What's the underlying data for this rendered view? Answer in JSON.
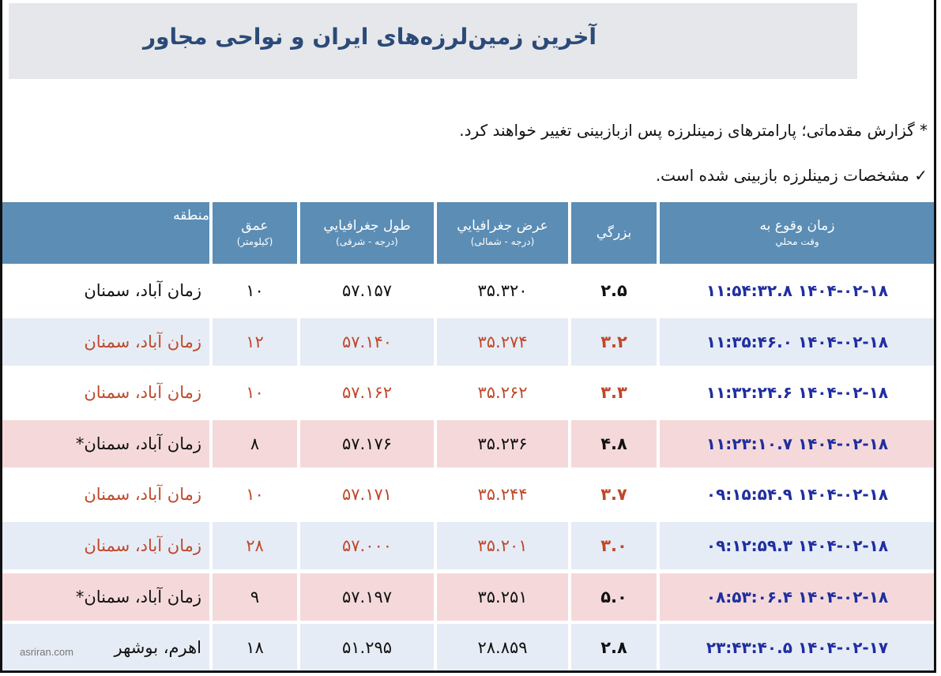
{
  "title": "آخرین زمین‌لرزه‌های ایران و نواحی مجاور",
  "notes": {
    "preliminary": "* گزارش مقدماتی؛ پارامترهای زمینلرزه پس ازبازبینی تغییر خواهند کرد.",
    "reviewed": "✓ مشخصات زمینلرزه بازبینی شده است."
  },
  "headers": {
    "time": {
      "main": "زمان وقوع به",
      "sub": "وقت محلي"
    },
    "magnitude": {
      "main": "بزرگي"
    },
    "latitude": {
      "main": "عرض جغرافيايي",
      "sub": "(درجه - شمالی)"
    },
    "longitude": {
      "main": "طول جغرافيايي",
      "sub": "(درجه - شرقی)"
    },
    "depth": {
      "main": "عمق",
      "sub": "(کیلومتر)"
    },
    "region": {
      "main": "منطقه"
    }
  },
  "rows": [
    {
      "time": "۱۴۰۴-۰۲-۱۸ ۱۱:۵۴:۳۲.۸",
      "magnitude": "۲.۵",
      "latitude": "۳۵.۳۲۰",
      "longitude": "۵۷.۱۵۷",
      "depth": "۱۰",
      "region": "زمان آباد، سمنان",
      "star": "",
      "tone": "dark",
      "bg": "white"
    },
    {
      "time": "۱۴۰۴-۰۲-۱۸ ۱۱:۳۵:۴۶.۰",
      "magnitude": "۳.۲",
      "latitude": "۳۵.۲۷۴",
      "longitude": "۵۷.۱۴۰",
      "depth": "۱۲",
      "region": "زمان آباد، سمنان",
      "star": "",
      "tone": "red",
      "bg": "blue"
    },
    {
      "time": "۱۴۰۴-۰۲-۱۸ ۱۱:۳۲:۲۴.۶",
      "magnitude": "۳.۳",
      "latitude": "۳۵.۲۶۲",
      "longitude": "۵۷.۱۶۲",
      "depth": "۱۰",
      "region": "زمان آباد، سمنان",
      "star": "",
      "tone": "red",
      "bg": "white"
    },
    {
      "time": "۱۴۰۴-۰۲-۱۸ ۱۱:۲۳:۱۰.۷",
      "magnitude": "۴.۸",
      "latitude": "۳۵.۲۳۶",
      "longitude": "۵۷.۱۷۶",
      "depth": "۸",
      "region": "زمان آباد، سمنان",
      "star": "*",
      "tone": "dark",
      "bg": "pink"
    },
    {
      "time": "۱۴۰۴-۰۲-۱۸ ۰۹:۱۵:۵۴.۹",
      "magnitude": "۳.۷",
      "latitude": "۳۵.۲۴۴",
      "longitude": "۵۷.۱۷۱",
      "depth": "۱۰",
      "region": "زمان آباد، سمنان",
      "star": "",
      "tone": "red",
      "bg": "white"
    },
    {
      "time": "۱۴۰۴-۰۲-۱۸ ۰۹:۱۲:۵۹.۳",
      "magnitude": "۳.۰",
      "latitude": "۳۵.۲۰۱",
      "longitude": "۵۷.۰۰۰",
      "depth": "۲۸",
      "region": "زمان آباد، سمنان",
      "star": "",
      "tone": "red",
      "bg": "blue"
    },
    {
      "time": "۱۴۰۴-۰۲-۱۸ ۰۸:۵۳:۰۶.۴",
      "magnitude": "۵.۰",
      "latitude": "۳۵.۲۵۱",
      "longitude": "۵۷.۱۹۷",
      "depth": "۹",
      "region": "زمان آباد، سمنان",
      "star": "*",
      "tone": "dark",
      "bg": "pink"
    },
    {
      "time": "۱۴۰۴-۰۲-۱۷ ۲۳:۴۳:۴۰.۵",
      "magnitude": "۲.۸",
      "latitude": "۲۸.۸۵۹",
      "longitude": "۵۱.۲۹۵",
      "depth": "۱۸",
      "region": "اهرم، بوشهر",
      "star": "",
      "tone": "dark",
      "bg": "blue"
    }
  ],
  "watermark": "asriran.com"
}
